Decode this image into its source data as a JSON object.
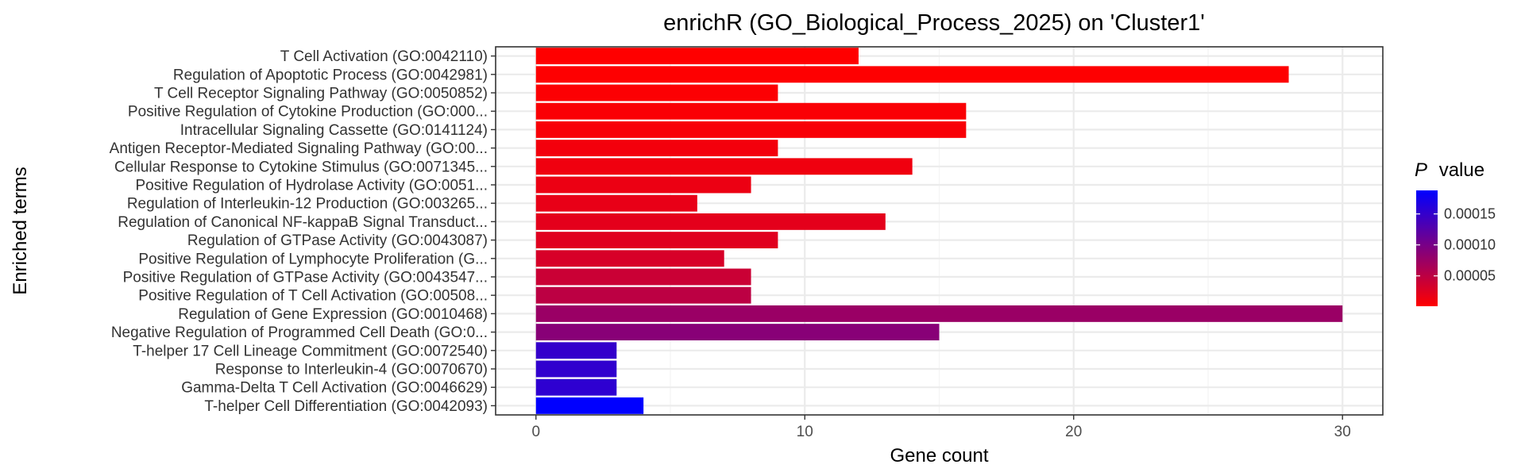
{
  "chart_data": {
    "type": "bar",
    "orientation": "horizontal",
    "title": "enrichR (GO_Biological_Process_2025) on 'Cluster1'",
    "xlabel": "Gene count",
    "ylabel": "Enriched terms",
    "xlim": [
      -1.5,
      31.5
    ],
    "xticks": [
      0,
      10,
      20,
      30
    ],
    "grid": true,
    "categories": [
      "T Cell Activation (GO:0042110)",
      "Regulation of Apoptotic Process (GO:0042981)",
      "T Cell Receptor Signaling Pathway (GO:0050852)",
      "Positive Regulation of Cytokine Production (GO:000...",
      "Intracellular Signaling Cassette (GO:0141124)",
      "Antigen Receptor-Mediated Signaling Pathway (GO:00...",
      "Cellular Response to Cytokine Stimulus (GO:0071345...",
      "Positive Regulation of Hydrolase Activity (GO:0051...",
      "Regulation of Interleukin-12 Production (GO:003265...",
      "Regulation of Canonical NF-kappaB Signal Transduct...",
      "Regulation of GTPase Activity (GO:0043087)",
      "Positive Regulation of Lymphocyte Proliferation (G...",
      "Positive Regulation of GTPase Activity (GO:0043547...",
      "Positive Regulation of T Cell Activation (GO:00508...",
      "Regulation of Gene Expression (GO:0010468)",
      "Negative Regulation of Programmed Cell Death (GO:0...",
      "T-helper 17 Cell Lineage Commitment (GO:0072540)",
      "Response to Interleukin-4 (GO:0070670)",
      "Gamma-Delta T Cell Activation (GO:0046629)",
      "T-helper Cell Differentiation (GO:0042093)"
    ],
    "values": [
      12,
      28,
      9,
      16,
      16,
      9,
      14,
      8,
      6,
      13,
      9,
      7,
      8,
      8,
      30,
      15,
      3,
      3,
      3,
      4
    ],
    "p_values": [
      1e-06,
      2e-06,
      3e-06,
      5e-06,
      6e-06,
      1e-05,
      1.2e-05,
      1.5e-05,
      1.8e-05,
      2.1e-05,
      2.4e-05,
      3e-05,
      4e-05,
      5e-05,
      7.5e-05,
      8.8e-05,
      0.00015,
      0.000152,
      0.000154,
      0.000188
    ],
    "legend": {
      "title_italic": "P",
      "title_rest": "value",
      "position": "right",
      "range": [
        1e-06,
        0.000188
      ],
      "ticks": [
        5e-05,
        0.0001,
        0.00015
      ],
      "tick_labels": [
        "0.00005",
        "0.00010",
        "0.00015"
      ],
      "low_color": "#ff0000",
      "high_color": "#0000ff"
    },
    "colors": {
      "panel_border": "#333333",
      "grid_major": "#ebebeb",
      "grid_minor": "#f4f4f4"
    }
  }
}
